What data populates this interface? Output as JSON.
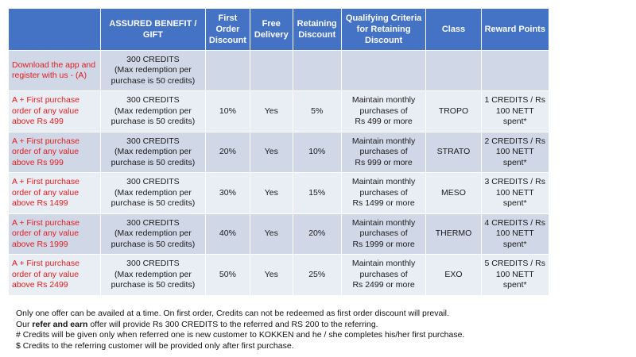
{
  "headers": [
    "",
    "ASSURED BENEFIT / GIFT",
    "First Order Discount",
    "Free Delivery",
    "Retaining Discount",
    "Qualifying Criteria for Retaining Discount",
    "Class",
    "Reward Points"
  ],
  "rows": [
    {
      "offer": "Download the app and register with us - (A)",
      "benefit": [
        "300 CREDITS",
        "(Max redemption per",
        "purchase is 50 credits)"
      ],
      "first_order_discount": "",
      "free_delivery": "",
      "retaining_discount": "",
      "criteria": [
        "",
        "",
        ""
      ],
      "class": "",
      "reward": [
        "",
        "",
        ""
      ]
    },
    {
      "offer": "A + First purchase order of any value above Rs 499",
      "benefit": [
        "300 CREDITS",
        "(Max redemption per",
        "purchase is 50 credits)"
      ],
      "first_order_discount": "10%",
      "free_delivery": "Yes",
      "retaining_discount": "5%",
      "criteria": [
        "Maintain monthly",
        "purchases of",
        "Rs 499 or more"
      ],
      "class": "TROPO",
      "reward": [
        "1 CREDITS / Rs",
        "100 NETT",
        "spent*"
      ]
    },
    {
      "offer": "A + First purchase order of any value above Rs 999",
      "benefit": [
        "300 CREDITS",
        "(Max redemption per",
        "purchase is 50 credits)"
      ],
      "first_order_discount": "20%",
      "free_delivery": "Yes",
      "retaining_discount": "10%",
      "criteria": [
        "Maintain monthly",
        "purchases of",
        "Rs 999 or more"
      ],
      "class": "STRATO",
      "reward": [
        "2 CREDITS / Rs",
        "100 NETT",
        "spent*"
      ]
    },
    {
      "offer": "A + First purchase order of any value above Rs 1499",
      "benefit": [
        "300 CREDITS",
        "(Max redemption per",
        "purchase is 50 credits)"
      ],
      "first_order_discount": "30%",
      "free_delivery": "Yes",
      "retaining_discount": "15%",
      "criteria": [
        "Maintain monthly",
        "purchases of",
        "Rs 1499 or more"
      ],
      "class": "MESO",
      "reward": [
        "3 CREDITS / Rs",
        "100 NETT",
        "spent*"
      ]
    },
    {
      "offer": "A + First purchase order of any value above Rs 1999",
      "benefit": [
        "300 CREDITS",
        "(Max redemption per",
        "purchase is 50 credits)"
      ],
      "first_order_discount": "40%",
      "free_delivery": "Yes",
      "retaining_discount": "20%",
      "criteria": [
        "Maintain monthly",
        "purchases of",
        "Rs 1999 or more"
      ],
      "class": "THERMO",
      "reward": [
        "4 CREDITS / Rs",
        "100 NETT",
        "spent*"
      ]
    },
    {
      "offer": "A + First purchase order of any value above Rs 2499",
      "benefit": [
        "300 CREDITS",
        "(Max redemption per",
        "purchase is 50 credits)"
      ],
      "first_order_discount": "50%",
      "free_delivery": "Yes",
      "retaining_discount": "25%",
      "criteria": [
        "Maintain monthly",
        "purchases of",
        "Rs 2499 or more"
      ],
      "class": "EXO",
      "reward": [
        "5 CREDITS / Rs",
        "100 NETT",
        "spent*"
      ]
    }
  ],
  "notes": {
    "line1": "Only one offer can be availed at a time. On first order, Credits can not be redeemed as first order discount will prevail.",
    "line2_prefix": "Our ",
    "line2_bold": "refer and earn",
    "line2_suffix": " offer will provide Rs 300 CREDITS to the referred and RS 200 to the referring.",
    "line3": "# Credits will be given only when referred one is new customer to KOKKEN and he / she completes his/her first purchase.",
    "line4": "$ Credits to the referring customer will be provided only after first purchase."
  },
  "colors": {
    "header_bg": "#4472c4",
    "row_dark": "#d0d8e8",
    "row_light": "#e9edf4",
    "offer_text": "#e11d1d"
  }
}
